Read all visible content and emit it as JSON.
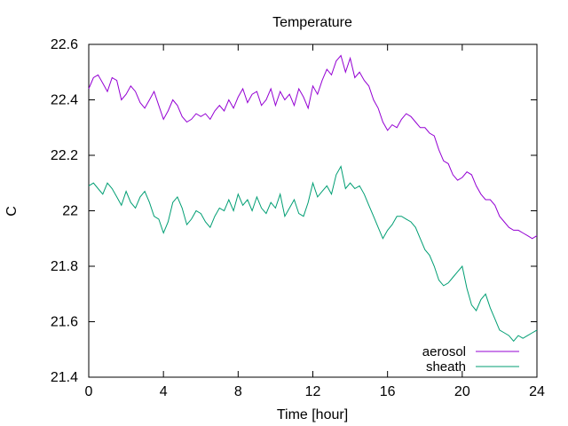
{
  "chart_data": {
    "type": "line",
    "title": "Temperature",
    "xlabel": "Time [hour]",
    "ylabel": "C",
    "xlim": [
      0,
      24
    ],
    "ylim": [
      21.4,
      22.6
    ],
    "xticks": [
      0,
      4,
      8,
      12,
      16,
      20,
      24
    ],
    "yticks": [
      21.4,
      21.6,
      21.8,
      22,
      22.2,
      22.4,
      22.6
    ],
    "grid": false,
    "legend_position": "bottom-right",
    "series": [
      {
        "name": "aerosol",
        "color": "#9400d3",
        "x": [
          0,
          0.25,
          0.5,
          0.75,
          1,
          1.25,
          1.5,
          1.75,
          2,
          2.25,
          2.5,
          2.75,
          3,
          3.25,
          3.5,
          3.75,
          4,
          4.25,
          4.5,
          4.75,
          5,
          5.25,
          5.5,
          5.75,
          6,
          6.25,
          6.5,
          6.75,
          7,
          7.25,
          7.5,
          7.75,
          8,
          8.25,
          8.5,
          8.75,
          9,
          9.25,
          9.5,
          9.75,
          10,
          10.25,
          10.5,
          10.75,
          11,
          11.25,
          11.5,
          11.75,
          12,
          12.25,
          12.5,
          12.75,
          13,
          13.25,
          13.5,
          13.75,
          14,
          14.25,
          14.5,
          14.75,
          15,
          15.25,
          15.5,
          15.75,
          16,
          16.25,
          16.5,
          16.75,
          17,
          17.25,
          17.5,
          17.75,
          18,
          18.25,
          18.5,
          18.75,
          19,
          19.25,
          19.5,
          19.75,
          20,
          20.25,
          20.5,
          20.75,
          21,
          21.25,
          21.5,
          21.75,
          22,
          22.25,
          22.5,
          22.75,
          23,
          23.25,
          23.5,
          23.75,
          24
        ],
        "y": [
          22.44,
          22.48,
          22.49,
          22.46,
          22.43,
          22.48,
          22.47,
          22.4,
          22.42,
          22.45,
          22.43,
          22.39,
          22.37,
          22.4,
          22.43,
          22.38,
          22.33,
          22.36,
          22.4,
          22.38,
          22.34,
          22.32,
          22.33,
          22.35,
          22.34,
          22.35,
          22.33,
          22.36,
          22.38,
          22.36,
          22.4,
          22.37,
          22.41,
          22.44,
          22.39,
          22.42,
          22.43,
          22.38,
          22.4,
          22.44,
          22.38,
          22.43,
          22.4,
          22.42,
          22.38,
          22.44,
          22.41,
          22.37,
          22.45,
          22.42,
          22.47,
          22.51,
          22.49,
          22.54,
          22.56,
          22.5,
          22.55,
          22.48,
          22.5,
          22.47,
          22.45,
          22.4,
          22.37,
          22.32,
          22.29,
          22.31,
          22.3,
          22.33,
          22.35,
          22.34,
          22.32,
          22.3,
          22.3,
          22.28,
          22.27,
          22.22,
          22.18,
          22.17,
          22.13,
          22.11,
          22.12,
          22.14,
          22.13,
          22.09,
          22.06,
          22.04,
          22.04,
          22.02,
          21.98,
          21.96,
          21.94,
          21.93,
          21.93,
          21.92,
          21.91,
          21.9,
          21.91
        ]
      },
      {
        "name": "sheath",
        "color": "#009e73",
        "x": [
          0,
          0.25,
          0.5,
          0.75,
          1,
          1.25,
          1.5,
          1.75,
          2,
          2.25,
          2.5,
          2.75,
          3,
          3.25,
          3.5,
          3.75,
          4,
          4.25,
          4.5,
          4.75,
          5,
          5.25,
          5.5,
          5.75,
          6,
          6.25,
          6.5,
          6.75,
          7,
          7.25,
          7.5,
          7.75,
          8,
          8.25,
          8.5,
          8.75,
          9,
          9.25,
          9.5,
          9.75,
          10,
          10.25,
          10.5,
          10.75,
          11,
          11.25,
          11.5,
          11.75,
          12,
          12.25,
          12.5,
          12.75,
          13,
          13.25,
          13.5,
          13.75,
          14,
          14.25,
          14.5,
          14.75,
          15,
          15.25,
          15.5,
          15.75,
          16,
          16.25,
          16.5,
          16.75,
          17,
          17.25,
          17.5,
          17.75,
          18,
          18.25,
          18.5,
          18.75,
          19,
          19.25,
          19.5,
          19.75,
          20,
          20.25,
          20.5,
          20.75,
          21,
          21.25,
          21.5,
          21.75,
          22,
          22.25,
          22.5,
          22.75,
          23,
          23.25,
          23.5,
          23.75,
          24
        ],
        "y": [
          22.09,
          22.1,
          22.08,
          22.06,
          22.1,
          22.08,
          22.05,
          22.02,
          22.07,
          22.03,
          22.01,
          22.05,
          22.07,
          22.03,
          21.98,
          21.97,
          21.92,
          21.96,
          22.03,
          22.05,
          22.01,
          21.95,
          21.97,
          22.0,
          21.99,
          21.96,
          21.94,
          21.98,
          22.01,
          22.0,
          22.04,
          22.0,
          22.06,
          22.02,
          22.04,
          22.0,
          22.05,
          22.01,
          21.99,
          22.03,
          22.01,
          22.06,
          21.98,
          22.01,
          22.04,
          21.99,
          21.98,
          22.03,
          22.1,
          22.05,
          22.07,
          22.09,
          22.06,
          22.13,
          22.16,
          22.08,
          22.1,
          22.08,
          22.09,
          22.06,
          22.02,
          21.98,
          21.94,
          21.9,
          21.93,
          21.95,
          21.98,
          21.98,
          21.97,
          21.96,
          21.94,
          21.9,
          21.86,
          21.84,
          21.8,
          21.75,
          21.73,
          21.74,
          21.76,
          21.78,
          21.8,
          21.72,
          21.66,
          21.64,
          21.68,
          21.7,
          21.65,
          21.61,
          21.57,
          21.56,
          21.55,
          21.53,
          21.55,
          21.54,
          21.55,
          21.56,
          21.57
        ]
      }
    ]
  }
}
